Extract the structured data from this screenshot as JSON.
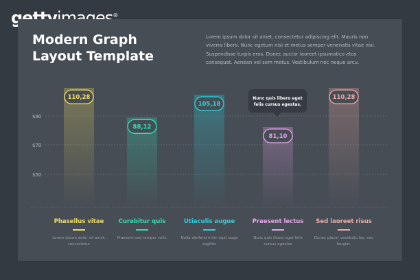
{
  "logo": {
    "bold": "getty",
    "light": "images",
    "mark": "®"
  },
  "title": "Modern Graph Layout Template",
  "description": "Lorem ipsum dolor sit amet, consectetur adipiscing elit. Mauris non viverra libero. Nunc egetum nisi et metus semper venenatis vitae nisi. Suspendisse turpis eros. Donec auctor laoreet ipsumatico etos consequat. Aenean vel sem metus. Vestibulum nec neque arcu.",
  "tooltip": "Nunc quis libero eget felis cursus egestas.",
  "chart_data": {
    "type": "bar",
    "y_ticks": [
      "$90",
      "$70",
      "$50"
    ],
    "grid": true,
    "categories": [
      "Phasellus vitae",
      "Curabitur quis",
      "Utiaculis augue",
      "Praesent lectus",
      "Sed laoreet risus"
    ],
    "values": [
      110.28,
      88.12,
      105.18,
      81.1,
      110.28
    ],
    "value_labels": [
      "110,28",
      "88,12",
      "105,18",
      "81,10",
      "110,28"
    ],
    "colors": [
      "#f2dc5d",
      "#2fe0b4",
      "#22d6e2",
      "#e9a2ec",
      "#f2aaa2"
    ],
    "descriptions": [
      "Lorem ipsum dolor sit amet, consectetur",
      "Praesent sed tempor velit.",
      "Nulla eleifend enim eget auge sagittis",
      "Nunc quis libero eget felis cursus egestas",
      "Donec placer vestibulu leo, nec feugiat."
    ]
  }
}
